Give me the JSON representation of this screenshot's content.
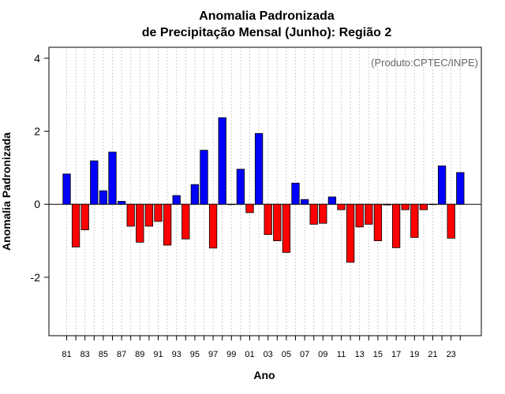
{
  "chart_data": {
    "type": "bar",
    "title": "Anomalia Padronizada",
    "subtitle": "de Precipitação Mensal (Junho): Região 2",
    "xlabel": "Ano",
    "ylabel": "Anomalia Padronizada",
    "annotation": "(Produto:CPTEC/INPE)",
    "ylim": [
      -3.6,
      4.3
    ],
    "yticks": [
      -2,
      0,
      2,
      4
    ],
    "ytick_labels": [
      "-2",
      "0",
      "2",
      "4"
    ],
    "grid": "vertical dotted lines at each year",
    "positive_color": "#0000ff",
    "negative_color": "#ff0000",
    "categories": [
      "1981",
      "1982",
      "1983",
      "1984",
      "1985",
      "1986",
      "1987",
      "1988",
      "1989",
      "1990",
      "1991",
      "1992",
      "1993",
      "1994",
      "1995",
      "1996",
      "1997",
      "1998",
      "1999",
      "2000",
      "2001",
      "2002",
      "2003",
      "2004",
      "2005",
      "2006",
      "2007",
      "2008",
      "2009",
      "2010",
      "2011",
      "2012",
      "2013",
      "2014",
      "2015",
      "2016",
      "2017",
      "2018",
      "2019",
      "2020",
      "2021",
      "2022",
      "2023",
      "2024"
    ],
    "xtick_labels": [
      "81",
      "",
      "83",
      "",
      "85",
      "",
      "87",
      "",
      "89",
      "",
      "91",
      "",
      "93",
      "",
      "95",
      "",
      "97",
      "",
      "99",
      "",
      "01",
      "",
      "03",
      "",
      "05",
      "",
      "07",
      "",
      "09",
      "",
      "11",
      "",
      "13",
      "",
      "15",
      "",
      "17",
      "",
      "19",
      "",
      "21",
      "",
      "23",
      ""
    ],
    "values": [
      0.83,
      -1.17,
      -0.7,
      1.19,
      0.37,
      1.43,
      0.08,
      -0.6,
      -1.04,
      -0.6,
      -0.47,
      -1.12,
      0.24,
      -0.95,
      0.54,
      1.48,
      -1.2,
      2.37,
      0.0,
      0.96,
      -0.23,
      1.94,
      -0.83,
      -1.0,
      -1.32,
      0.58,
      0.13,
      -0.55,
      -0.52,
      0.2,
      -0.15,
      -1.59,
      -0.62,
      -0.55,
      -1.0,
      -0.02,
      -1.19,
      -0.15,
      -0.91,
      -0.15,
      0.0,
      1.05,
      -0.93,
      0.87
    ]
  }
}
